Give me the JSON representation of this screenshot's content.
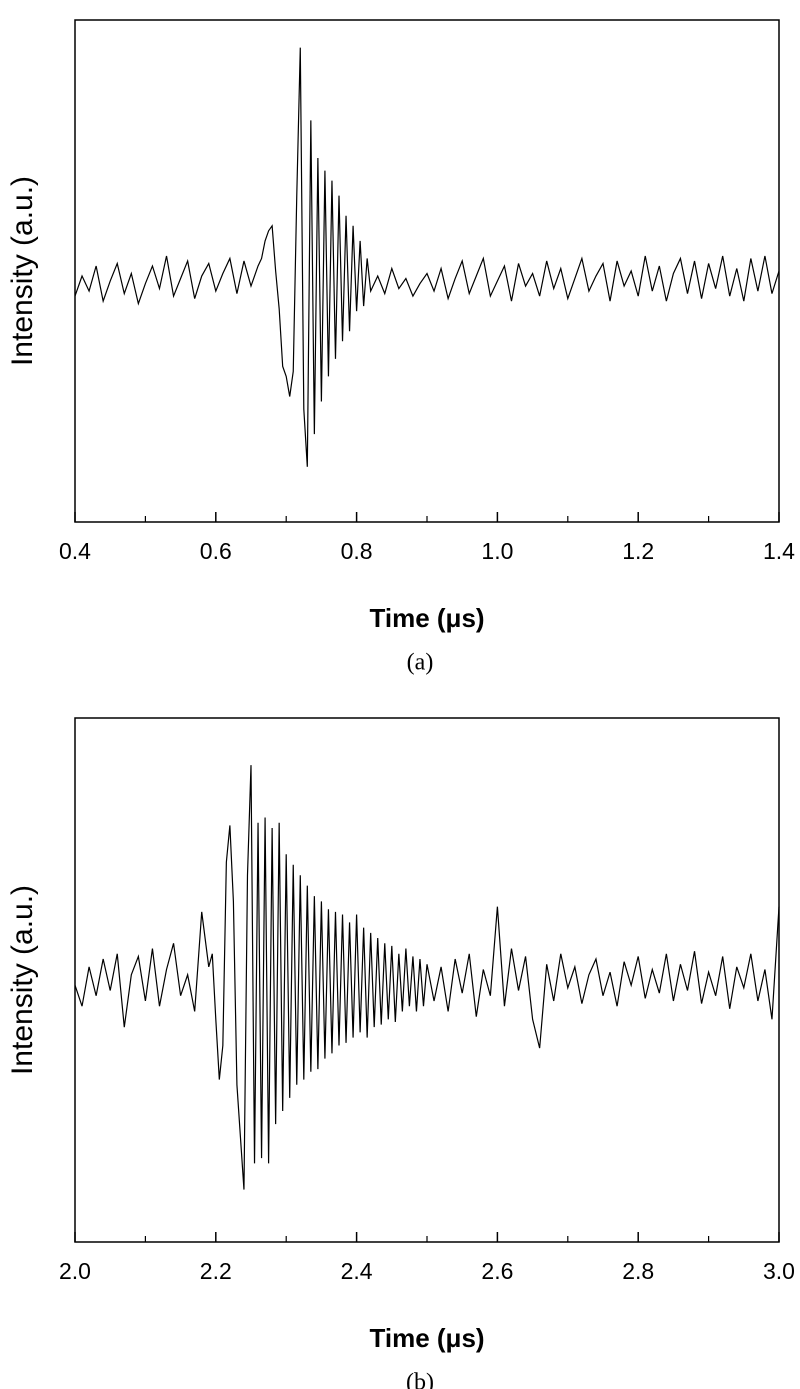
{
  "chart_data": [
    {
      "type": "line",
      "caption": "(a)",
      "xlabel": "Time (μs)",
      "ylabel": "Intensity (a.u.)",
      "xlim": [
        0.4,
        1.4
      ],
      "ylim": [
        -1,
        1
      ],
      "xticks": [
        0.4,
        0.6,
        0.8,
        {
          "value": 1,
          "label": "1.0"
        },
        1.2,
        1.4
      ],
      "xminorticks": [
        0.5,
        0.7,
        0.9,
        1.1,
        1.3
      ],
      "series": [
        {
          "color": "#000000",
          "x": [
            0.4,
            0.41,
            0.42,
            0.43,
            0.44,
            0.45,
            0.46,
            0.47,
            0.48,
            0.49,
            0.5,
            0.51,
            0.52,
            0.53,
            0.54,
            0.55,
            0.56,
            0.57,
            0.58,
            0.59,
            0.6,
            0.61,
            0.62,
            0.63,
            0.64,
            0.65,
            0.66,
            0.665,
            0.67,
            0.675,
            0.68,
            0.685,
            0.69,
            0.695,
            0.7,
            0.705,
            0.71,
            0.715,
            0.72,
            0.725,
            0.73,
            0.735,
            0.74,
            0.745,
            0.75,
            0.755,
            0.76,
            0.765,
            0.77,
            0.775,
            0.78,
            0.785,
            0.79,
            0.795,
            0.8,
            0.805,
            0.81,
            0.815,
            0.82,
            0.83,
            0.84,
            0.85,
            0.86,
            0.87,
            0.88,
            0.89,
            0.9,
            0.91,
            0.92,
            0.93,
            0.94,
            0.95,
            0.96,
            0.97,
            0.98,
            0.99,
            1.0,
            1.01,
            1.02,
            1.03,
            1.04,
            1.05,
            1.06,
            1.07,
            1.08,
            1.09,
            1.1,
            1.11,
            1.12,
            1.13,
            1.14,
            1.15,
            1.16,
            1.17,
            1.18,
            1.19,
            1.2,
            1.21,
            1.22,
            1.23,
            1.24,
            1.25,
            1.26,
            1.27,
            1.28,
            1.29,
            1.3,
            1.31,
            1.32,
            1.33,
            1.34,
            1.35,
            1.36,
            1.37,
            1.38,
            1.39,
            1.4
          ],
          "values": [
            -0.1,
            -0.02,
            -0.08,
            0.02,
            -0.12,
            -0.04,
            0.03,
            -0.09,
            -0.01,
            -0.13,
            -0.05,
            0.02,
            -0.07,
            0.06,
            -0.1,
            -0.03,
            0.04,
            -0.11,
            -0.02,
            0.03,
            -0.08,
            -0.01,
            0.05,
            -0.09,
            0.04,
            -0.06,
            0.02,
            0.05,
            0.12,
            0.16,
            0.18,
            0.0,
            -0.15,
            -0.38,
            -0.42,
            -0.5,
            -0.4,
            0.3,
            0.89,
            -0.55,
            -0.78,
            0.6,
            -0.65,
            0.45,
            -0.52,
            0.4,
            -0.42,
            0.36,
            -0.35,
            0.3,
            -0.28,
            0.22,
            -0.24,
            0.18,
            -0.16,
            0.12,
            -0.14,
            0.05,
            -0.08,
            -0.02,
            -0.09,
            0.01,
            -0.07,
            -0.03,
            -0.1,
            -0.05,
            -0.01,
            -0.08,
            0.01,
            -0.11,
            -0.03,
            0.04,
            -0.09,
            -0.02,
            0.05,
            -0.1,
            -0.04,
            0.02,
            -0.12,
            0.03,
            -0.06,
            -0.01,
            -0.1,
            0.04,
            -0.07,
            0.01,
            -0.11,
            -0.03,
            0.05,
            -0.08,
            -0.02,
            0.03,
            -0.12,
            0.04,
            -0.06,
            0.0,
            -0.1,
            0.06,
            -0.08,
            0.02,
            -0.12,
            -0.01,
            0.05,
            -0.09,
            0.04,
            -0.11,
            0.03,
            -0.07,
            0.06,
            -0.1,
            0.01,
            -0.12,
            0.05,
            -0.08,
            0.06,
            -0.09,
            0.0
          ]
        }
      ]
    },
    {
      "type": "line",
      "caption": "(b)",
      "xlabel": "Time (μs)",
      "ylabel": "Intensity (a.u.)",
      "xlim": [
        2,
        3
      ],
      "ylim": [
        -1,
        1
      ],
      "xticks": [
        {
          "value": 2,
          "label": "2.0"
        },
        2.2,
        2.4,
        2.6,
        2.8,
        {
          "value": 3,
          "label": "3.0"
        }
      ],
      "xminorticks": [
        2.1,
        2.3,
        2.5,
        2.7,
        2.9
      ],
      "series": [
        {
          "color": "#000000",
          "x": [
            2.0,
            2.01,
            2.02,
            2.03,
            2.04,
            2.05,
            2.06,
            2.07,
            2.08,
            2.09,
            2.1,
            2.11,
            2.12,
            2.13,
            2.14,
            2.15,
            2.16,
            2.17,
            2.18,
            2.19,
            2.195,
            2.2,
            2.205,
            2.21,
            2.215,
            2.22,
            2.225,
            2.23,
            2.235,
            2.24,
            2.245,
            2.25,
            2.255,
            2.26,
            2.265,
            2.27,
            2.275,
            2.28,
            2.285,
            2.29,
            2.295,
            2.3,
            2.305,
            2.31,
            2.315,
            2.32,
            2.325,
            2.33,
            2.335,
            2.34,
            2.345,
            2.35,
            2.355,
            2.36,
            2.365,
            2.37,
            2.375,
            2.38,
            2.385,
            2.39,
            2.395,
            2.4,
            2.405,
            2.41,
            2.415,
            2.42,
            2.425,
            2.43,
            2.435,
            2.44,
            2.445,
            2.45,
            2.455,
            2.46,
            2.465,
            2.47,
            2.475,
            2.48,
            2.485,
            2.49,
            2.495,
            2.5,
            2.51,
            2.52,
            2.53,
            2.54,
            2.55,
            2.56,
            2.57,
            2.58,
            2.59,
            2.6,
            2.61,
            2.62,
            2.63,
            2.64,
            2.65,
            2.66,
            2.67,
            2.68,
            2.69,
            2.7,
            2.71,
            2.72,
            2.73,
            2.74,
            2.75,
            2.76,
            2.77,
            2.78,
            2.79,
            2.8,
            2.81,
            2.82,
            2.83,
            2.84,
            2.85,
            2.86,
            2.87,
            2.88,
            2.89,
            2.9,
            2.91,
            2.92,
            2.93,
            2.94,
            2.95,
            2.96,
            2.97,
            2.98,
            2.99,
            3.0
          ],
          "values": [
            -0.02,
            -0.1,
            0.05,
            -0.06,
            0.08,
            -0.04,
            0.1,
            -0.18,
            0.02,
            0.09,
            -0.08,
            0.12,
            -0.1,
            0.04,
            0.14,
            -0.06,
            0.02,
            -0.12,
            0.26,
            0.05,
            0.1,
            -0.15,
            -0.38,
            -0.25,
            0.45,
            0.59,
            0.3,
            -0.4,
            -0.6,
            -0.8,
            0.4,
            0.82,
            -0.7,
            0.6,
            -0.68,
            0.62,
            -0.7,
            0.58,
            -0.55,
            0.6,
            -0.5,
            0.48,
            -0.45,
            0.44,
            -0.4,
            0.4,
            -0.38,
            0.36,
            -0.35,
            0.32,
            -0.34,
            0.3,
            -0.3,
            0.27,
            -0.28,
            0.26,
            -0.25,
            0.25,
            -0.24,
            0.22,
            -0.22,
            0.25,
            -0.2,
            0.2,
            -0.22,
            0.18,
            -0.18,
            0.16,
            -0.17,
            0.14,
            -0.15,
            0.13,
            -0.16,
            0.1,
            -0.12,
            0.12,
            -0.1,
            0.09,
            -0.12,
            0.08,
            -0.1,
            0.06,
            -0.08,
            0.05,
            -0.12,
            0.08,
            -0.05,
            0.1,
            -0.14,
            0.04,
            -0.06,
            0.28,
            -0.1,
            0.12,
            -0.04,
            0.09,
            -0.15,
            -0.26,
            0.06,
            -0.08,
            0.1,
            -0.03,
            0.05,
            -0.09,
            0.02,
            0.08,
            -0.06,
            0.03,
            -0.1,
            0.07,
            -0.02,
            0.09,
            -0.07,
            0.04,
            -0.05,
            0.1,
            -0.08,
            0.06,
            -0.04,
            0.11,
            -0.09,
            0.03,
            -0.06,
            0.09,
            -0.11,
            0.05,
            -0.03,
            0.1,
            -0.08,
            0.04,
            -0.15,
            0.28
          ]
        }
      ]
    }
  ]
}
